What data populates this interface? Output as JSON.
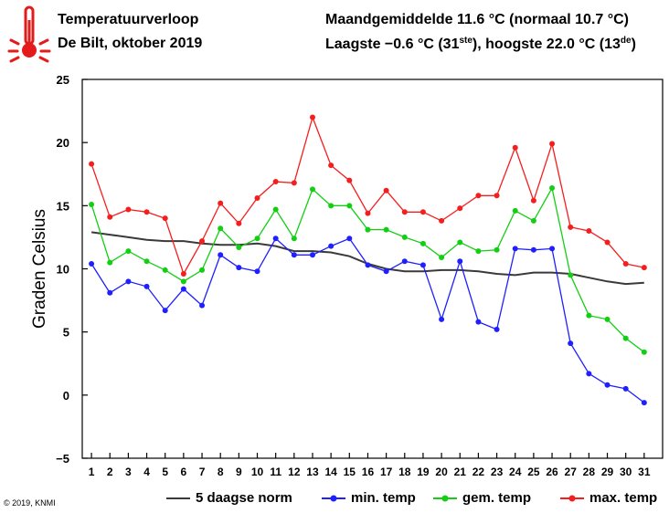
{
  "header": {
    "title": "Temperatuurverloop",
    "subtitle": "De Bilt, oktober 2019",
    "monthly_avg": "Maandgemiddelde 11.6 °C (normaal 10.7 °C)",
    "extremes_low": "Laagste −0.6 °C (31",
    "extremes_low_sup": "ste",
    "extremes_mid": "), hoogste 22.0 °C (13",
    "extremes_high_sup": "de",
    "extremes_end": ")"
  },
  "icon": {
    "name": "thermometer-icon",
    "color": "#e41b1b"
  },
  "copyright": "© 2019, KNMI",
  "chart_data": {
    "type": "line",
    "title": "Temperatuurverloop",
    "ylabel": "Graden Celsius",
    "xlabel": "",
    "x": [
      1,
      2,
      3,
      4,
      5,
      6,
      7,
      8,
      9,
      10,
      11,
      12,
      13,
      14,
      15,
      16,
      17,
      18,
      19,
      20,
      21,
      22,
      23,
      24,
      25,
      26,
      27,
      28,
      29,
      30,
      31
    ],
    "ylim": [
      -5,
      25
    ],
    "yticks": [
      -5,
      0,
      5,
      10,
      15,
      20,
      25
    ],
    "grid": "off",
    "legend_position": "bottom",
    "series": [
      {
        "name": "5 daagse norm",
        "color": "#3a3a3a",
        "markers": false,
        "values": [
          12.9,
          12.7,
          12.5,
          12.3,
          12.2,
          12.2,
          12.0,
          11.9,
          11.9,
          12.0,
          11.8,
          11.4,
          11.4,
          11.3,
          11.0,
          10.4,
          10.0,
          9.8,
          9.8,
          9.9,
          9.9,
          9.8,
          9.6,
          9.5,
          9.7,
          9.7,
          9.6,
          9.3,
          9.0,
          8.8,
          8.9
        ]
      },
      {
        "name": "min. temp",
        "color": "#1f1fff",
        "markers": true,
        "values": [
          10.4,
          8.1,
          9.0,
          8.6,
          6.7,
          8.4,
          7.1,
          11.1,
          10.1,
          9.8,
          12.4,
          11.1,
          11.1,
          11.8,
          12.4,
          10.3,
          9.8,
          10.6,
          10.3,
          6.0,
          10.6,
          5.8,
          5.2,
          11.6,
          11.5,
          11.6,
          4.1,
          1.7,
          0.8,
          0.5,
          -0.6
        ]
      },
      {
        "name": "gem. temp",
        "color": "#13cf13",
        "markers": true,
        "values": [
          15.1,
          10.5,
          11.4,
          10.6,
          9.9,
          9.0,
          9.9,
          13.2,
          11.7,
          12.4,
          14.7,
          12.4,
          16.3,
          15.0,
          15.0,
          13.1,
          13.1,
          12.5,
          12.0,
          10.9,
          12.1,
          11.4,
          11.5,
          14.6,
          13.8,
          16.4,
          9.5,
          6.3,
          6.0,
          4.5,
          3.4
        ]
      },
      {
        "name": "max. temp",
        "color": "#f51e1e",
        "markers": true,
        "values": [
          18.3,
          14.1,
          14.7,
          14.5,
          14.0,
          9.6,
          12.2,
          15.2,
          13.6,
          15.6,
          16.9,
          16.8,
          22.0,
          18.2,
          17.0,
          14.4,
          16.2,
          14.5,
          14.5,
          13.8,
          14.8,
          15.8,
          15.8,
          19.6,
          15.4,
          19.9,
          13.3,
          13.0,
          12.1,
          10.4,
          10.1
        ]
      }
    ]
  }
}
